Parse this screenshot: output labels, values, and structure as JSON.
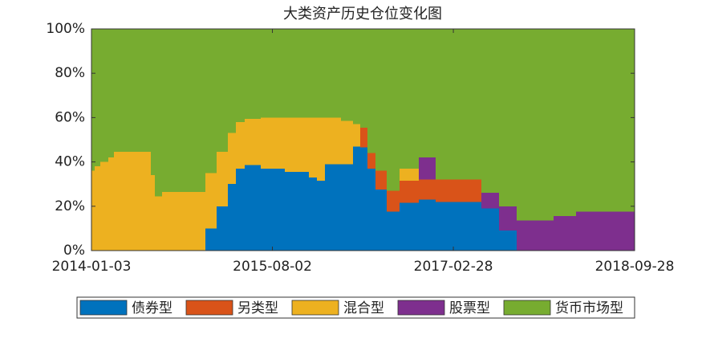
{
  "chart_data": {
    "type": "stacked_step_area",
    "title": "大类资产历史仓位变化图",
    "x": [
      "2014-01-03",
      "2014-01-13",
      "2014-01-31",
      "2014-02-26",
      "2014-03-16",
      "2014-07-11",
      "2014-07-24",
      "2014-08-16",
      "2015-01-01",
      "2015-02-05",
      "2015-03-13",
      "2015-04-08",
      "2015-05-06",
      "2015-06-26",
      "2015-09-11",
      "2015-11-26",
      "2015-12-22",
      "2016-01-16",
      "2016-03-07",
      "2016-04-15",
      "2016-05-08",
      "2016-05-31",
      "2016-06-25",
      "2016-07-31",
      "2016-09-10",
      "2016-11-10",
      "2017-01-03",
      "2017-05-28",
      "2017-07-23",
      "2017-09-18",
      "2018-01-13",
      "2018-03-26"
    ],
    "xlim": [
      "2014-01-03",
      "2018-09-28"
    ],
    "xticks": [
      "2014-01-03",
      "2015-08-02",
      "2017-02-28",
      "2018-09-28"
    ],
    "ylim": [
      0,
      100
    ],
    "yticks": [
      {
        "value": 0,
        "label": "0%"
      },
      {
        "value": 20,
        "label": "20%"
      },
      {
        "value": 40,
        "label": "40%"
      },
      {
        "value": 60,
        "label": "60%"
      },
      {
        "value": 80,
        "label": "80%"
      },
      {
        "value": 100,
        "label": "100%"
      }
    ],
    "legend": "bottom",
    "series": [
      {
        "name": "债券型",
        "color": "#0072bd",
        "values": [
          0,
          0,
          0,
          0,
          0,
          0,
          0,
          0,
          10,
          20,
          30,
          37,
          38.5,
          37,
          35.5,
          33,
          31.5,
          39,
          39,
          47,
          46.5,
          37,
          27.5,
          17.5,
          21.5,
          23,
          22,
          19,
          9,
          0,
          0,
          0
        ]
      },
      {
        "name": "另类型",
        "color": "#d95319",
        "values": [
          0,
          0,
          0,
          0,
          0,
          0,
          0,
          0,
          0,
          0,
          0,
          0,
          0,
          0,
          0,
          0,
          0,
          0,
          0,
          0,
          9,
          7,
          8.5,
          9.5,
          10,
          9,
          10,
          0,
          0,
          0,
          0,
          0
        ]
      },
      {
        "name": "混合型",
        "color": "#edb120",
        "values": [
          36,
          38,
          40,
          42,
          44.5,
          34,
          24.5,
          26.5,
          25,
          24.5,
          23,
          21,
          21,
          23,
          24.5,
          27,
          28.5,
          21,
          19.5,
          10,
          0,
          0,
          0,
          0,
          5.5,
          0,
          0,
          0,
          0,
          0,
          0,
          0
        ]
      },
      {
        "name": "股票型",
        "color": "#7e2f8e",
        "values": [
          0,
          0,
          0,
          0,
          0,
          0,
          0,
          0,
          0,
          0,
          0,
          0,
          0,
          0,
          0,
          0,
          0,
          0,
          0,
          0,
          0,
          0,
          0,
          0,
          0,
          10,
          0,
          7,
          11,
          13.5,
          15.5,
          17.5
        ]
      },
      {
        "name": "货币市场型",
        "color": "#77ac30",
        "values": [
          64,
          62,
          60,
          58,
          55.5,
          66,
          75.5,
          73.5,
          65,
          55.5,
          47,
          42,
          40.5,
          40,
          40,
          40,
          40,
          40,
          41.5,
          43,
          44.5,
          56,
          64,
          73,
          63,
          58,
          68,
          74,
          80,
          86.5,
          84.5,
          82.5
        ]
      }
    ]
  }
}
